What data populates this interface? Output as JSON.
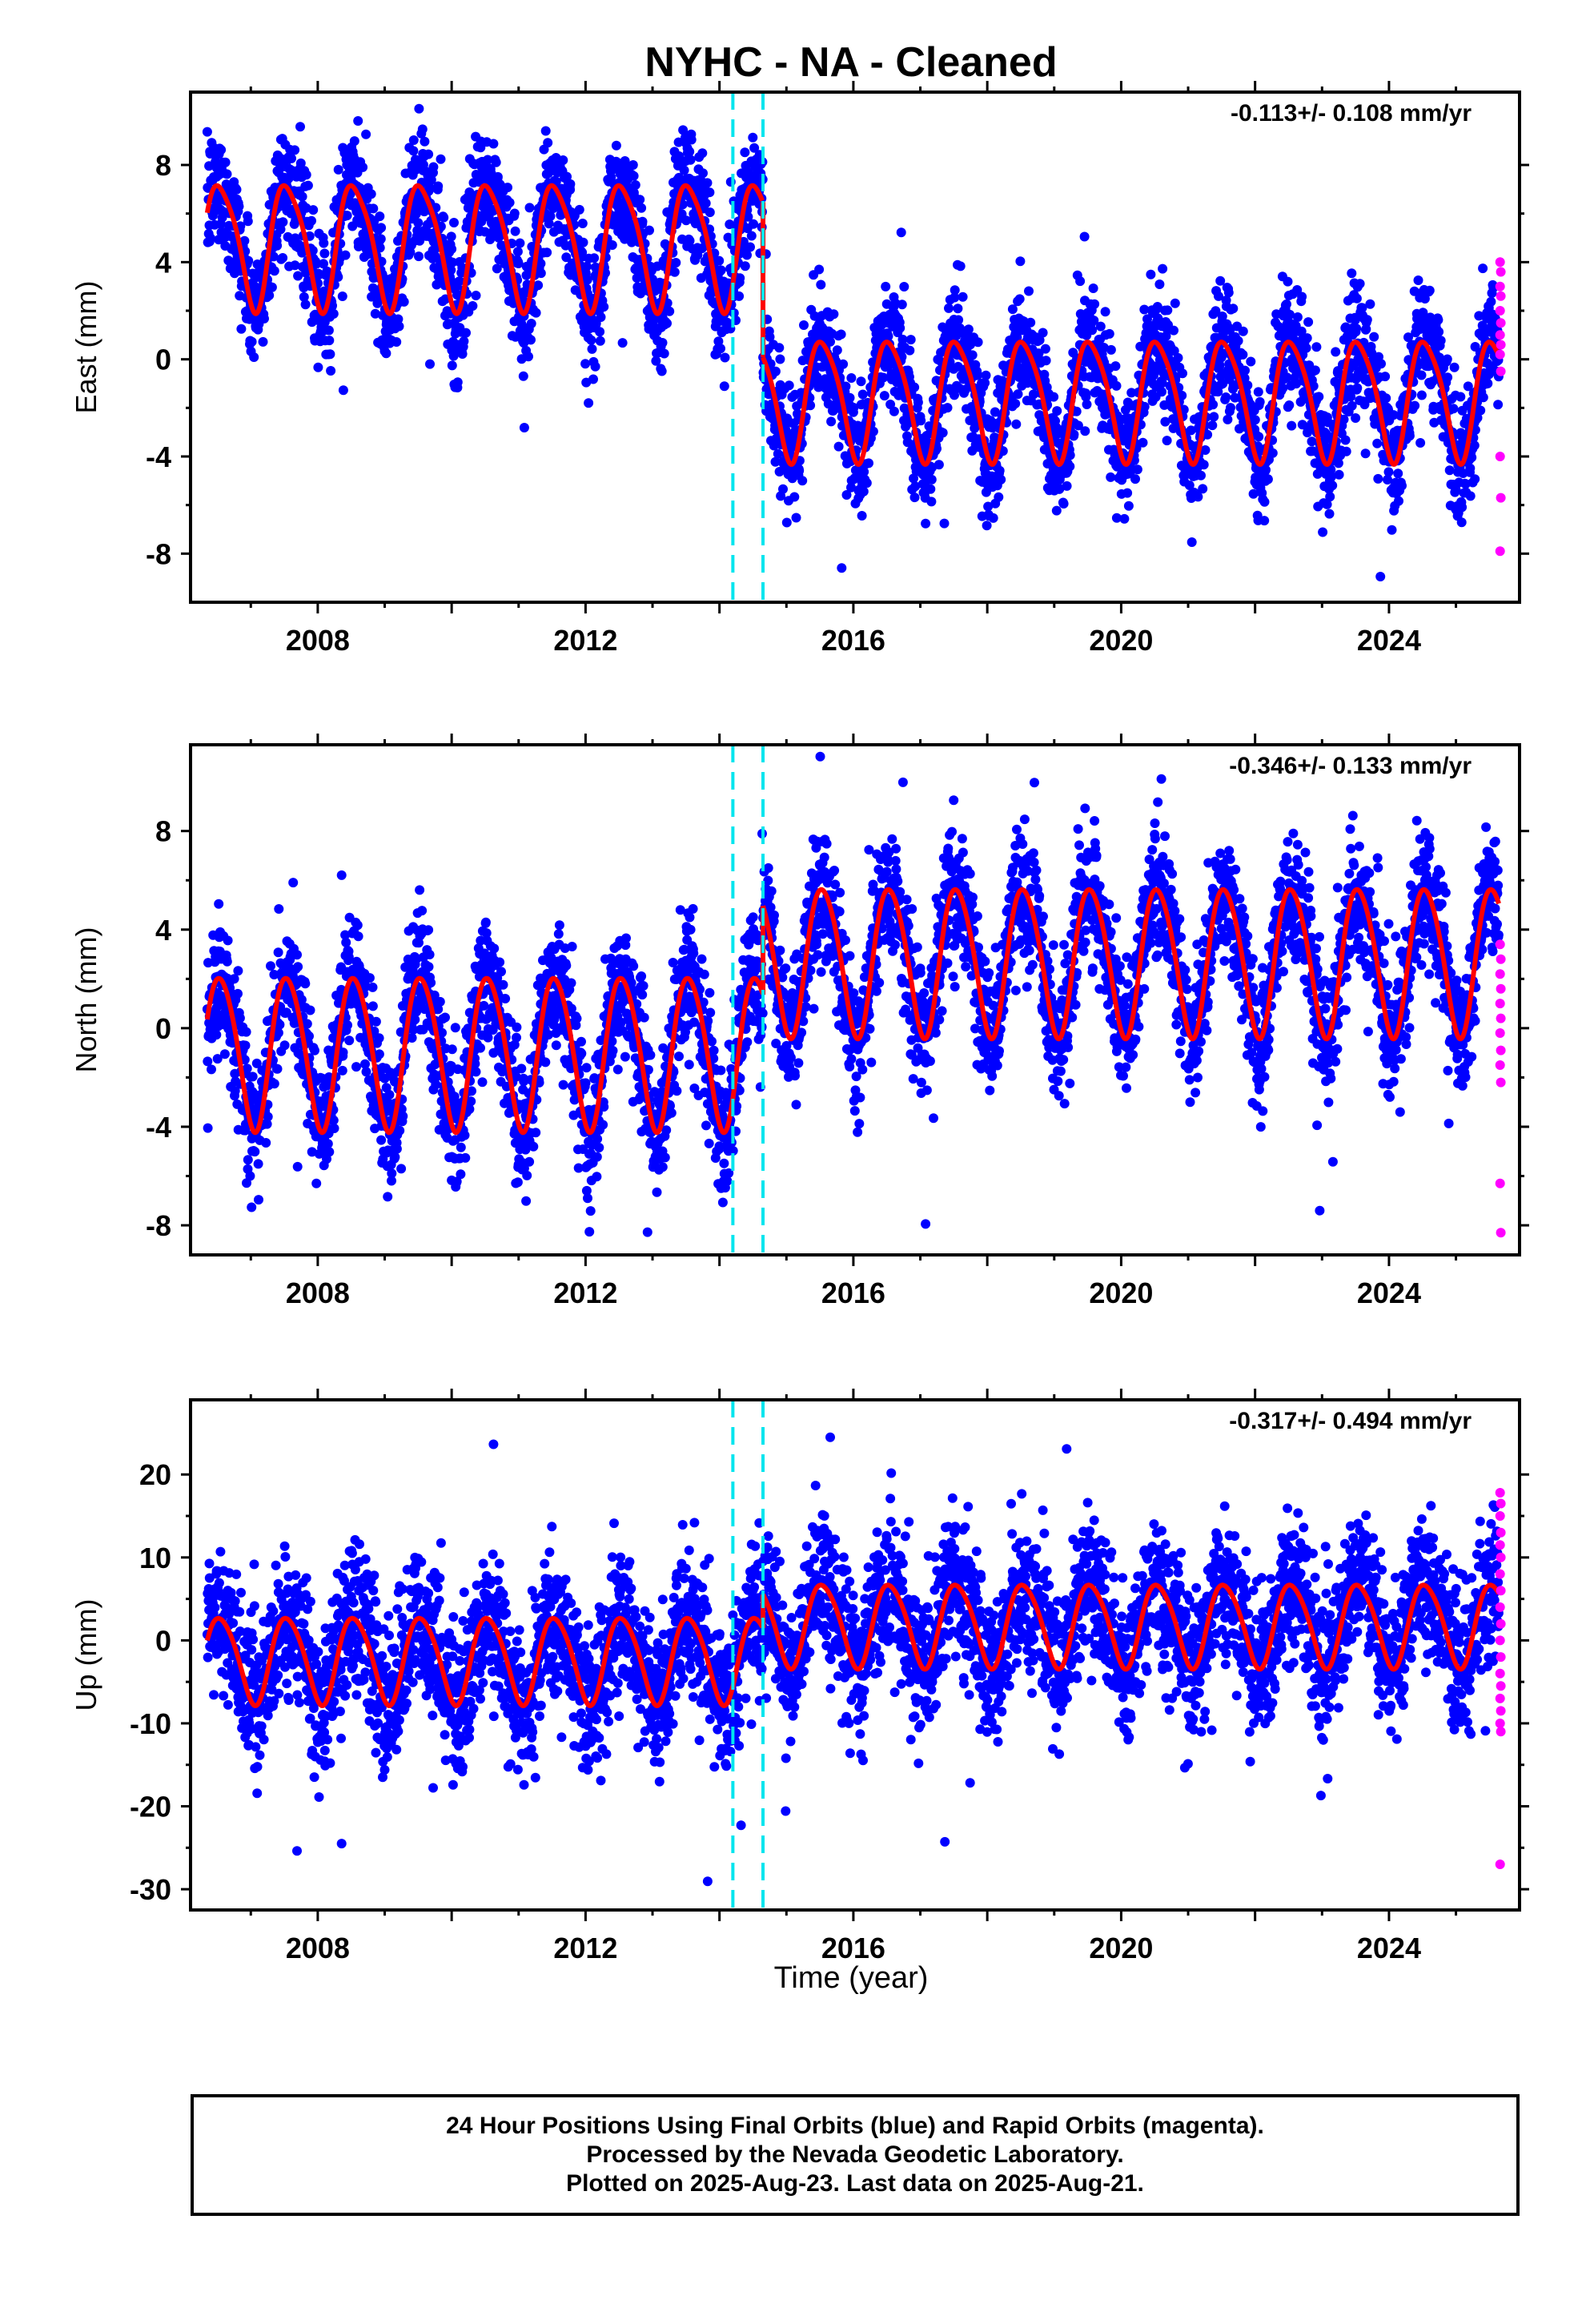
{
  "title": "NYHC  - NA - Cleaned",
  "xlabel": "Time (year)",
  "footer": {
    "lines": [
      "24 Hour Positions Using Final Orbits (blue) and Rapid Orbits (magenta).",
      "Processed by the Nevada Geodetic Laboratory.",
      "Plotted on 2025-Aug-23. Last data on 2025-Aug-21."
    ]
  },
  "colors": {
    "final_orbits": "#0000ff",
    "rapid_orbits": "#ff00ff",
    "model": "#ff0000",
    "event_lines": "#00e5ee"
  },
  "chart_data": [
    {
      "type": "scatter",
      "component": "East",
      "ylabel": "East (mm)",
      "rate_label": "-0.113+/- 0.108 mm/yr",
      "xlim": [
        2006.1,
        2025.95
      ],
      "ylim": [
        -10,
        11
      ],
      "xticks": [
        2008,
        2012,
        2016,
        2020,
        2024
      ],
      "yticks": [
        -8,
        -4,
        0,
        4,
        8
      ],
      "event_lines": [
        2014.2,
        2014.65
      ],
      "data_range": [
        2006.35,
        2025.64
      ],
      "offset_epoch": 2014.65,
      "model": {
        "pre": {
          "mean": 4.8,
          "annual_amplitude": 2.55,
          "semiannual_amplitude": 0.45
        },
        "post": {
          "mean": -1.55,
          "annual_amplitude": 2.45,
          "semiannual_amplitude": 0.4
        }
      },
      "scatter_std": 1.2,
      "series": [
        {
          "name": "Final Orbits (blue)",
          "color": "#0000ff"
        },
        {
          "name": "Rapid Orbits (magenta)",
          "color": "#ff00ff",
          "values": [
            4.0,
            3.6,
            3.0,
            2.6,
            2.0,
            1.5,
            1.0,
            0.6,
            0.2,
            -0.5,
            -4.0,
            -5.7,
            -7.9
          ]
        }
      ]
    },
    {
      "type": "scatter",
      "component": "North",
      "ylabel": "North (mm)",
      "rate_label": "-0.346+/- 0.133 mm/yr",
      "xlim": [
        2006.1,
        2025.95
      ],
      "ylim": [
        -9.2,
        11.5
      ],
      "xticks": [
        2008,
        2012,
        2016,
        2020,
        2024
      ],
      "yticks": [
        -8,
        -4,
        0,
        4,
        8
      ],
      "event_lines": [
        2014.2,
        2014.65
      ],
      "data_range": [
        2006.35,
        2025.64
      ],
      "offset_epoch": 2014.65,
      "model": {
        "pre": {
          "mean": -0.9,
          "annual_amplitude": 3.1,
          "semiannual_amplitude": 0.3
        },
        "post": {
          "mean": 2.8,
          "annual_amplitude": 3.0,
          "semiannual_amplitude": 0.3
        }
      },
      "scatter_std": 1.3,
      "series": [
        {
          "name": "Final Orbits (blue)",
          "color": "#0000ff"
        },
        {
          "name": "Rapid Orbits (magenta)",
          "color": "#ff00ff",
          "values": [
            3.4,
            2.8,
            2.2,
            1.6,
            1.0,
            0.4,
            -0.2,
            -0.9,
            -1.5,
            -2.2,
            -6.3,
            -8.3
          ]
        }
      ]
    },
    {
      "type": "scatter",
      "component": "Up",
      "ylabel": "Up (mm)",
      "rate_label": "-0.317+/- 0.494 mm/yr",
      "xlim": [
        2006.1,
        2025.95
      ],
      "ylim": [
        -32.5,
        29
      ],
      "xticks": [
        2008,
        2012,
        2016,
        2020,
        2024
      ],
      "yticks": [
        -30,
        -20,
        -10,
        0,
        10,
        20
      ],
      "event_lines": [
        2014.2,
        2014.65
      ],
      "data_range": [
        2006.35,
        2025.64
      ],
      "offset_epoch": 2014.65,
      "model": {
        "pre": {
          "mean": -2.2,
          "annual_amplitude": 5.2,
          "semiannual_amplitude": 0.6
        },
        "post": {
          "mean": 2.0,
          "annual_amplitude": 5.0,
          "semiannual_amplitude": 0.6
        }
      },
      "scatter_std": 4.3,
      "series": [
        {
          "name": "Final Orbits (blue)",
          "color": "#0000ff"
        },
        {
          "name": "Rapid Orbits (magenta)",
          "color": "#ff00ff",
          "values": [
            17.8,
            16.5,
            15.0,
            13.0,
            11.5,
            10.0,
            8.0,
            6.0,
            4.0,
            2.0,
            0.0,
            -2.0,
            -4.0,
            -5.5,
            -7.0,
            -8.5,
            -10.0,
            -11.0,
            -27.0
          ]
        }
      ]
    }
  ]
}
